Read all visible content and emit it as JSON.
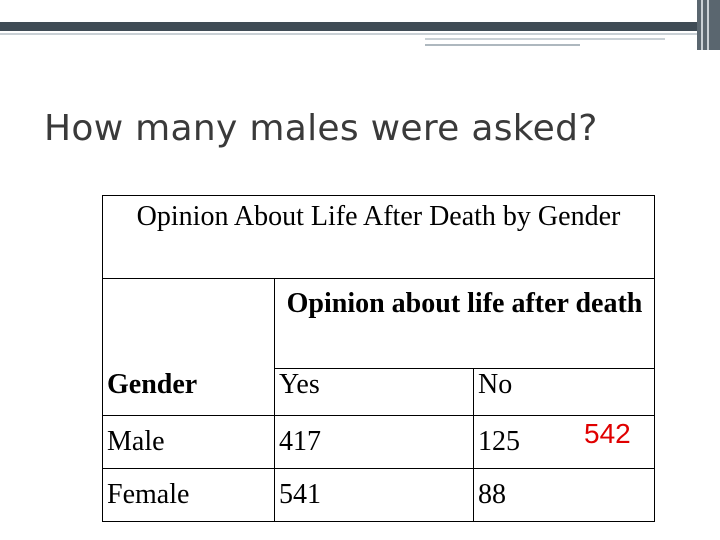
{
  "slide": {
    "title": "How many males were asked?"
  },
  "table": {
    "caption": "Opinion About Life After Death by Gender",
    "column_group_header": "Opinion about life after death",
    "row_header": "Gender",
    "columns": [
      "Yes",
      "No"
    ],
    "rows": [
      {
        "label": "Male",
        "values": [
          "417",
          "125"
        ]
      },
      {
        "label": "Female",
        "values": [
          "541",
          "88"
        ]
      }
    ]
  },
  "annotation": {
    "male_total": "542",
    "color": "#e00000"
  },
  "theme": {
    "band_color": "#3f4b55",
    "title_color": "#3a3a3a"
  }
}
